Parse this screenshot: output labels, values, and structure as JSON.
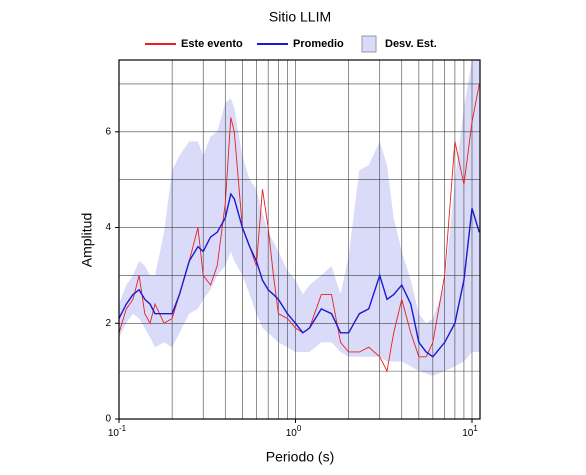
{
  "chart_data": {
    "type": "line",
    "title": "Sitio LLIM",
    "xlabel": "Periodo (s)",
    "ylabel": "Amplitud",
    "xscale": "log",
    "grid": true,
    "legend": "top",
    "xlim": [
      0.1,
      11.1
    ],
    "ylim": [
      0,
      7.5
    ],
    "xticks": [
      {
        "value": 0.1,
        "label": "10",
        "exponent": "-1"
      },
      {
        "value": 1,
        "label": "10",
        "exponent": "0"
      },
      {
        "value": 10,
        "label": "10",
        "exponent": "1"
      }
    ],
    "x_minor_ticks": [
      0.2,
      0.3,
      0.4,
      0.5,
      0.6,
      0.7,
      0.8,
      0.9,
      2,
      3,
      4,
      5,
      6,
      7,
      8,
      9
    ],
    "yticks": [
      0,
      2,
      4,
      6
    ],
    "y_minor_ticks": [
      1,
      3,
      5,
      7
    ],
    "x": [
      0.1,
      0.11,
      0.12,
      0.13,
      0.14,
      0.15,
      0.16,
      0.18,
      0.2,
      0.22,
      0.25,
      0.28,
      0.3,
      0.33,
      0.36,
      0.4,
      0.43,
      0.45,
      0.5,
      0.55,
      0.6,
      0.65,
      0.7,
      0.75,
      0.8,
      0.9,
      1.0,
      1.1,
      1.2,
      1.4,
      1.6,
      1.8,
      2.0,
      2.3,
      2.6,
      3.0,
      3.3,
      3.6,
      4.0,
      4.5,
      5.0,
      5.5,
      6.0,
      7.0,
      8.0,
      9.0,
      10,
      11
    ],
    "bands": [
      {
        "name": "Desv. Est.",
        "color": "#d9dbf8",
        "upper": [
          2.4,
          2.8,
          3.0,
          3.3,
          3.2,
          3.0,
          3.0,
          3.9,
          5.2,
          5.5,
          5.8,
          5.8,
          5.5,
          5.9,
          6.0,
          6.6,
          6.7,
          6.5,
          5.5,
          5.0,
          4.8,
          4.3,
          3.9,
          3.7,
          3.5,
          3.1,
          2.9,
          2.6,
          2.8,
          3.0,
          3.2,
          2.6,
          3.4,
          5.2,
          5.3,
          5.8,
          5.3,
          4.2,
          3.5,
          2.9,
          2.2,
          2.0,
          2.1,
          2.8,
          5.0,
          6.5,
          7.5,
          7.5
        ],
        "lower": [
          1.7,
          2.0,
          2.2,
          2.1,
          1.9,
          1.7,
          1.5,
          1.6,
          1.5,
          1.8,
          2.2,
          2.3,
          2.5,
          2.7,
          3.0,
          3.2,
          3.5,
          3.3,
          3.0,
          2.6,
          2.2,
          1.9,
          1.8,
          1.7,
          1.6,
          1.5,
          1.4,
          1.4,
          1.4,
          1.6,
          1.6,
          1.4,
          1.3,
          1.3,
          1.3,
          1.3,
          1.2,
          1.2,
          1.2,
          1.1,
          1.0,
          0.95,
          0.9,
          1.0,
          1.1,
          1.2,
          1.4,
          1.4
        ]
      }
    ],
    "series": [
      {
        "name": "Este evento",
        "color": "#e8201f",
        "values": [
          1.8,
          2.3,
          2.5,
          3.0,
          2.2,
          2.0,
          2.4,
          2.0,
          2.1,
          2.6,
          3.3,
          4.0,
          3.0,
          2.8,
          3.2,
          4.5,
          6.3,
          6.0,
          4.0,
          3.6,
          3.2,
          4.8,
          4.0,
          3.0,
          2.2,
          2.1,
          1.9,
          1.8,
          1.9,
          2.6,
          2.6,
          1.6,
          1.4,
          1.4,
          1.5,
          1.3,
          1.0,
          1.8,
          2.5,
          1.8,
          1.3,
          1.3,
          1.6,
          3.0,
          5.8,
          4.9,
          6.2,
          7.0
        ]
      },
      {
        "name": "Promedio",
        "color": "#1a1ad0",
        "values": [
          2.1,
          2.4,
          2.6,
          2.7,
          2.5,
          2.4,
          2.2,
          2.2,
          2.2,
          2.6,
          3.3,
          3.6,
          3.5,
          3.8,
          3.9,
          4.2,
          4.7,
          4.6,
          4.0,
          3.6,
          3.3,
          2.9,
          2.7,
          2.6,
          2.5,
          2.2,
          2.0,
          1.8,
          1.9,
          2.3,
          2.2,
          1.8,
          1.8,
          2.2,
          2.3,
          3.0,
          2.5,
          2.6,
          2.8,
          2.4,
          1.6,
          1.4,
          1.3,
          1.6,
          2.0,
          2.9,
          4.4,
          3.9
        ]
      }
    ]
  }
}
